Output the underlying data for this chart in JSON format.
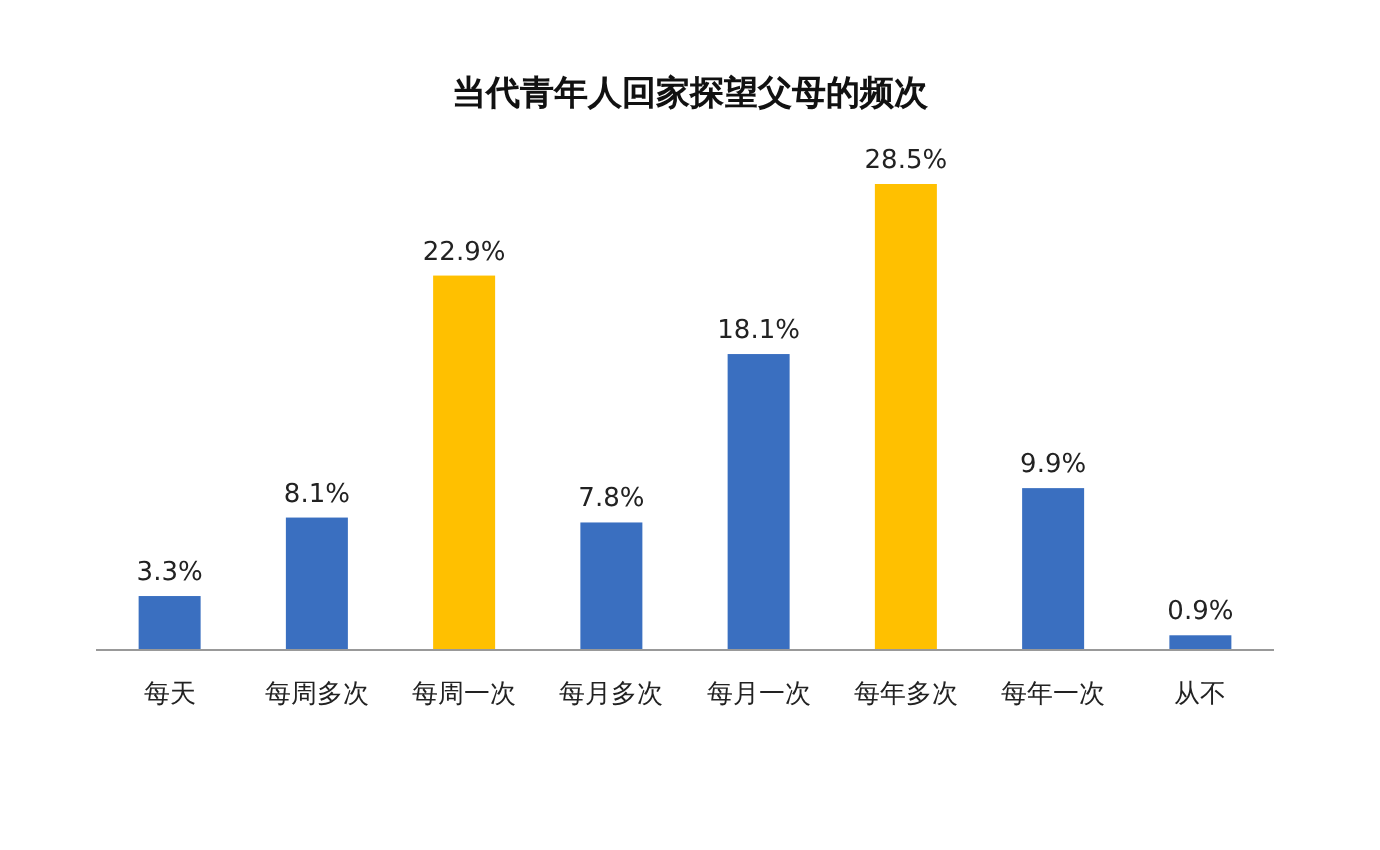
{
  "chart_data": {
    "type": "bar",
    "title": "当代青年人回家探望父母的频次",
    "categories": [
      "每天",
      "每周多次",
      "每周一次",
      "每月多次",
      "每月一次",
      "每年多次",
      "每年一次",
      "从不"
    ],
    "values": [
      3.3,
      8.1,
      22.9,
      7.8,
      18.1,
      28.5,
      9.9,
      0.9
    ],
    "value_labels": [
      "3.3%",
      "8.1%",
      "22.9%",
      "7.8%",
      "18.1%",
      "28.5%",
      "9.9%",
      "0.9%"
    ],
    "colors": [
      "#3a6fc0",
      "#3a6fc0",
      "#ffc000",
      "#3a6fc0",
      "#3a6fc0",
      "#ffc000",
      "#3a6fc0",
      "#3a6fc0"
    ]
  }
}
